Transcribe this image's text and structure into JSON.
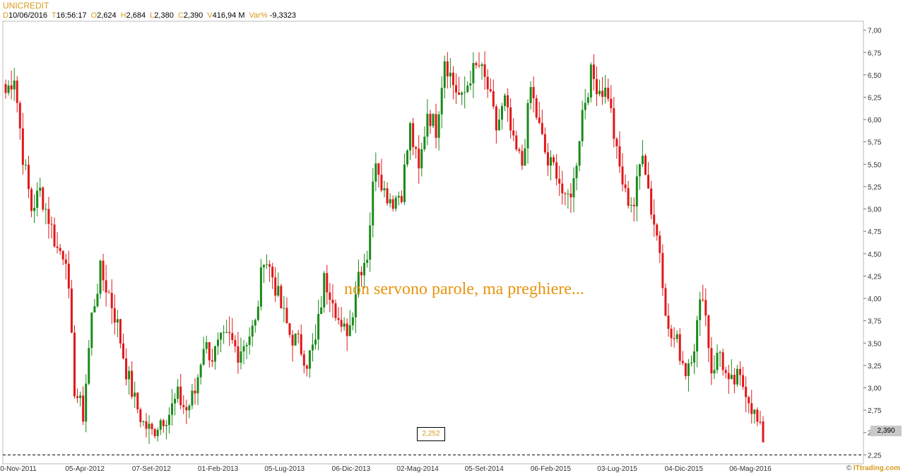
{
  "header": {
    "title": "UNICREDIT",
    "items": [
      {
        "key": "D",
        "value": "10/06/2016"
      },
      {
        "key": "T",
        "value": "16:56:17"
      },
      {
        "key": "O",
        "value": "2,624"
      },
      {
        "key": "H",
        "value": "2,684"
      },
      {
        "key": "L",
        "value": "2,380"
      },
      {
        "key": "C",
        "value": "2,390"
      },
      {
        "key": "V",
        "value": "416,94 M"
      },
      {
        "key": "Var%",
        "value": "-9,3323"
      }
    ]
  },
  "note": "non servono parole, ma preghiere...",
  "last_price_label": "2,390",
  "min_label": "2,252",
  "credit": {
    "prefix": "© ",
    "brand": "ITtrading.com"
  },
  "colors": {
    "up": "#1a8a1a",
    "down": "#e01818",
    "grid": "#d0d0d0",
    "accent": "#d89a1c",
    "note": "#e8950e"
  },
  "chart_data": {
    "type": "candlestick",
    "ylim": [
      2.15,
      7.1
    ],
    "ytick_labels": [
      "2,25",
      "2,50",
      "2,75",
      "3,00",
      "3,25",
      "3,50",
      "3,75",
      "4,00",
      "4,25",
      "4,50",
      "4,75",
      "5,00",
      "5,25",
      "5,50",
      "5,75",
      "6,00",
      "6,25",
      "6,50",
      "6,75",
      "7,00"
    ],
    "ytick_values": [
      2.25,
      2.5,
      2.75,
      3.0,
      3.25,
      3.5,
      3.75,
      4.0,
      4.25,
      4.5,
      4.75,
      5.0,
      5.25,
      5.5,
      5.75,
      6.0,
      6.25,
      6.5,
      6.75,
      7.0
    ],
    "xtick_labels": [
      "0-Nov-2011",
      "05-Apr-2012",
      "07-Set-2012",
      "01-Feb-2013",
      "05-Lug-2013",
      "06-Dic-2013",
      "02-Mag-2014",
      "05-Set-2014",
      "06-Feb-2015",
      "03-Lug-2015",
      "04-Dic-2015",
      "06-Mag-2016"
    ],
    "support_level": 2.25,
    "last_close": 2.39,
    "closes": [
      6.3,
      6.5,
      5.6,
      5.0,
      5.2,
      4.9,
      4.55,
      4.5,
      3.0,
      2.7,
      3.8,
      4.3,
      4.05,
      3.7,
      3.2,
      2.85,
      2.6,
      2.5,
      2.65,
      2.72,
      2.9,
      2.75,
      2.95,
      3.5,
      3.35,
      3.5,
      3.55,
      3.4,
      3.55,
      3.7,
      4.5,
      4.25,
      3.9,
      3.6,
      3.5,
      3.3,
      3.5,
      4.2,
      4.05,
      3.6,
      3.7,
      4.3,
      4.5,
      5.6,
      5.2,
      5.1,
      5.2,
      5.9,
      5.4,
      6.1,
      5.9,
      6.7,
      6.4,
      6.2,
      6.5,
      6.6,
      6.35,
      5.9,
      6.2,
      5.7,
      5.5,
      6.35,
      5.9,
      5.5,
      5.45,
      5.05,
      5.3,
      6.1,
      6.5,
      6.35,
      6.3,
      5.6,
      5.15,
      5.05,
      5.7,
      5.0,
      4.55,
      3.6,
      3.5,
      3.2,
      3.5,
      4.1,
      3.2,
      3.4,
      3.0,
      3.1,
      3.0,
      2.7,
      2.39
    ],
    "note": "Weekly/monthly OHLC bars are approximated by interpolated candles between the closes above."
  }
}
